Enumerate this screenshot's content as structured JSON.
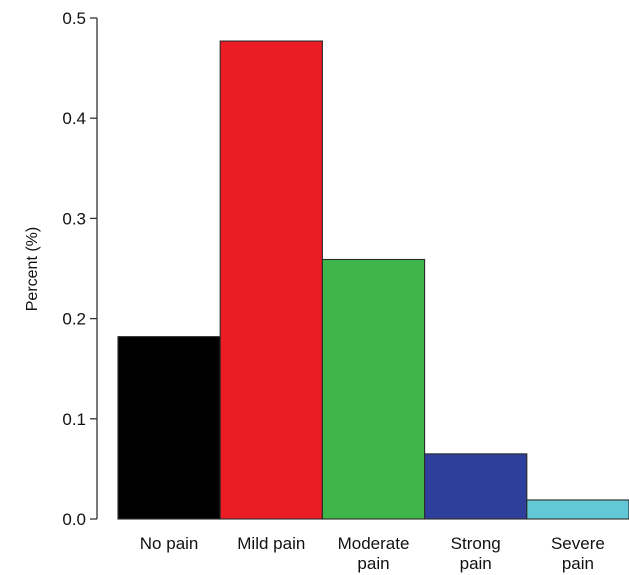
{
  "chart_data": {
    "type": "bar",
    "title": "",
    "xlabel": "",
    "ylabel": "Percent (%)",
    "ylim": [
      0,
      0.5
    ],
    "yticks": [
      "0.0",
      "0.1",
      "0.2",
      "0.3",
      "0.4",
      "0.5"
    ],
    "grid": false,
    "categories": [
      [
        "No pain"
      ],
      [
        "Mild pain"
      ],
      [
        "Moderate",
        "pain"
      ],
      [
        "Strong",
        "pain"
      ],
      [
        "Severe",
        "pain"
      ]
    ],
    "values": [
      0.182,
      0.477,
      0.259,
      0.065,
      0.019
    ],
    "colors": [
      "#000000",
      "#ec1c24",
      "#3fb64a",
      "#2e3f9b",
      "#62c8d6"
    ]
  }
}
